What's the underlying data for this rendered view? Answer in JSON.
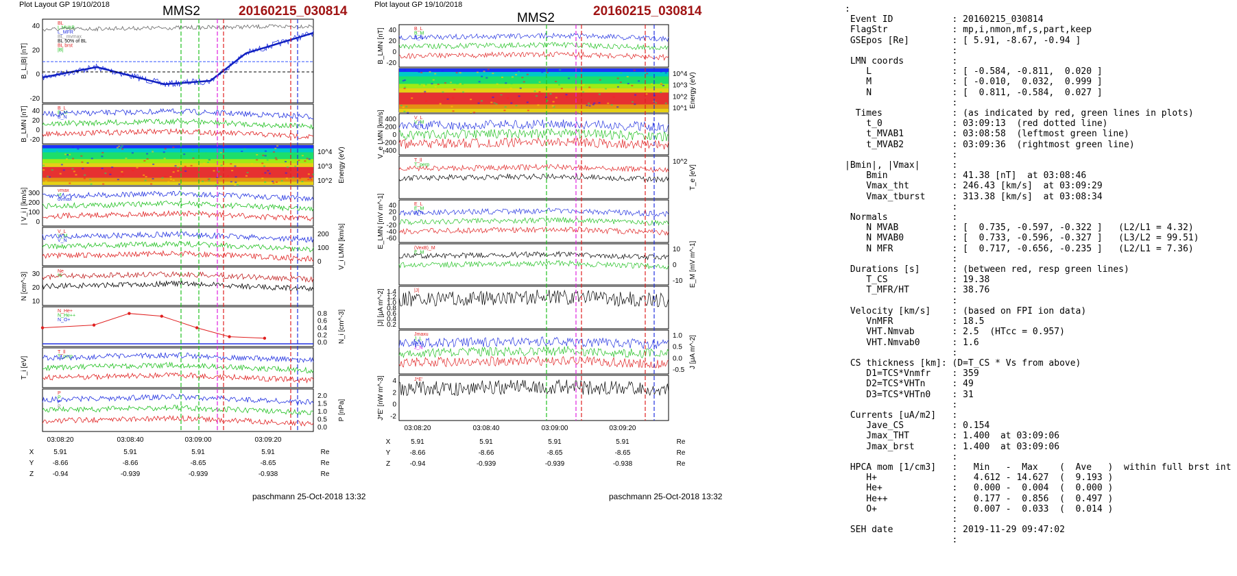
{
  "left": {
    "plot_layout": "Plot Layout GP 19/10/2018",
    "spacecraft": "MMS2",
    "event": "20160215_030814",
    "footer": "paschmann 25-Oct-2018 13:32",
    "time_ticks": [
      "03:08:20",
      "03:08:40",
      "03:09:00",
      "03:09:20"
    ],
    "pos_labels": [
      "X",
      "Y",
      "Z"
    ],
    "pos_values": [
      [
        "5.91",
        "5.91",
        "5.91",
        "5.91"
      ],
      [
        "-8.66",
        "-8.66",
        "-8.65",
        "-8.65"
      ],
      [
        "-0.94",
        "-0.939",
        "-0.939",
        "-0.938"
      ]
    ],
    "pos_unit": "Re",
    "panels": [
      {
        "ylabel": "B_L,|B| [nT]",
        "ticks": [
          "40",
          "20",
          "0",
          "-20"
        ],
        "legend": [
          "BL",
          "L MVAB",
          "L_MFR",
          "BL_mvmax",
          "BL 50% of BL",
          "BL brst",
          "|B|"
        ]
      },
      {
        "ylabel": "B_LMN [nT]",
        "ticks": [
          "40",
          "20",
          "0",
          "-20"
        ],
        "legend": [
          "B_L",
          "B_M",
          "B_N"
        ]
      },
      {
        "ylabel": "Energy (eV)",
        "ticks": [
          "10^4",
          "10^3",
          "10^2"
        ],
        "legend": []
      },
      {
        "ylabel": "| V_i | [km/s]",
        "ticks": [
          "300",
          "200",
          "100",
          "0"
        ],
        "legend": [
          "vmax",
          "vt",
          "dvmax"
        ]
      },
      {
        "ylabel": "V_i LMN [km/s]",
        "ticks": [
          "200",
          "100",
          "0"
        ],
        "legend": [
          "V_L",
          "V_M",
          "V_N"
        ]
      },
      {
        "ylabel": "N [cm^-3]",
        "ticks": [
          "30",
          "20",
          "10"
        ],
        "legend": [
          "Ne",
          "Ni"
        ]
      },
      {
        "ylabel": "N_i [cm^-3]",
        "ticks": [
          "0.8",
          "0.6",
          "0.4",
          "0.2",
          "0.0"
        ],
        "legend": [
          "N_He+",
          "N_He++",
          "N_O+"
        ]
      },
      {
        "ylabel": "T_i [eV]",
        "ticks": [],
        "legend": [
          "T_ll",
          "T_perp"
        ]
      },
      {
        "ylabel": "P [nPa]",
        "ticks": [
          "2.0",
          "1.5",
          "1.0",
          "0.5",
          "0.0"
        ],
        "legend": [
          "P",
          "P",
          "P",
          "P"
        ]
      }
    ]
  },
  "middle": {
    "plot_layout": "Plot layout GP 19/10/2018",
    "spacecraft": "MMS2",
    "event": "20160215_030814",
    "footer": "paschmann 25-Oct-2018 13:32",
    "time_ticks": [
      "03:08:20",
      "03:08:40",
      "03:09:00",
      "03:09:20"
    ],
    "pos_labels": [
      "X",
      "Y",
      "Z"
    ],
    "pos_values": [
      [
        "5.91",
        "5.91",
        "5.91",
        "5.91"
      ],
      [
        "-8.66",
        "-8.66",
        "-8.65",
        "-8.65"
      ],
      [
        "-0.94",
        "-0.939",
        "-0.939",
        "-0.938"
      ]
    ],
    "pos_unit": "Re",
    "panels": [
      {
        "ylabel": "B_LMN [nT]",
        "ticks": [
          "40",
          "20",
          "0",
          "-20"
        ],
        "legend": [
          "B_L",
          "B_M",
          "B_N"
        ]
      },
      {
        "ylabel": "Energy (eV)",
        "ticks": [
          "10^4",
          "10^3",
          "10^2",
          "10^1"
        ],
        "legend": []
      },
      {
        "ylabel": "V_e LMN [km/s]",
        "ticks": [
          "400",
          "200",
          "0",
          "-200",
          "-400"
        ],
        "legend": [
          "V_L",
          "V_M",
          "V_N"
        ]
      },
      {
        "ylabel": "T_e [eV]",
        "ticks": [
          "10^2"
        ],
        "legend": [
          "T_ll",
          "T_perp"
        ]
      },
      {
        "ylabel": "E_LMN [mV m^-1]",
        "ticks": [
          "40",
          "20",
          "0",
          "-20",
          "-40",
          "-60"
        ],
        "legend": [
          "E_L",
          "E_M",
          "E_N"
        ]
      },
      {
        "ylabel": "E_M [mV m^-1]",
        "ticks": [
          "10",
          "0",
          "-10"
        ],
        "legend": [
          "(VexB)_M",
          "E_M"
        ]
      },
      {
        "ylabel": "|J| [μA m^-2]",
        "ticks": [
          "1.4",
          "1.2",
          "1.0",
          "0.8",
          "0.6",
          "0.4",
          "0.2"
        ],
        "legend": [
          "|J|"
        ]
      },
      {
        "ylabel": "J [μA m^-2]",
        "ticks": [
          "1.0",
          "0.5",
          "0.0",
          "-0.5"
        ],
        "legend": [
          "Jmaxu",
          "J_L",
          "J_M",
          "J_N"
        ]
      },
      {
        "ylabel": "J*E' [nW m^-3]",
        "ticks": [
          "4",
          "2",
          "0",
          "-2"
        ],
        "legend": [
          "J*E'"
        ]
      }
    ]
  },
  "summary_lines": [
    ":",
    " Event ID           : 20160215_030814",
    " FlagStr            : mp,i,nmon,mf,s,part,keep",
    " GSEpos [Re]        : [ 5.91, -8.67, -0.94 ]",
    "                    :",
    " LMN coords         :",
    "    L               : [ -0.584, -0.811,  0.020 ]",
    "    M               : [ -0.010,  0.032,  0.999 ]",
    "    N               : [  0.811, -0.584,  0.027 ]",
    "                    :",
    "  Times             : (as indicated by red, green lines in plots)",
    "    t_0             : 03:09:13  (red dotted line)",
    "    t_MVAB1         : 03:08:58  (leftmost green line)",
    "    t_MVAB2         : 03:09:36  (rightmost green line)",
    "                    :",
    "|Bmin|, |Vmax|      :",
    "    Bmin            : 41.38 [nT]  at 03:08:46",
    "    Vmax_tht        : 246.43 [km/s]  at 03:09:29",
    "    Vmax_tburst     : 313.38 [km/s]  at 03:08:34",
    "                    :",
    " Normals            :",
    "    N MVAB          : [  0.735, -0.597, -0.322 ]   (L2/L1 = 4.32)",
    "    N MVAB0         : [  0.733, -0.596, -0.327 ]   (L3/L2 = 99.51)",
    "    N MFR           : [  0.717, -0.656, -0.235 ]   (L2/L1 = 7.36)",
    "                    :",
    " Durations [s]      : (between red, resp green lines)",
    "    T_CS            : 19.38",
    "    T_MFR/HT        : 38.76",
    "                    :",
    " Velocity [km/s]    : (based on FPI ion data)",
    "    VnMFR           : 18.5",
    "    VHT.Nmvab       : 2.5  (HTcc = 0.957)",
    "    VHT.Nmvab0      : 1.6",
    "                    :",
    " CS thickness [km]: (D=T_CS * Vs from above)",
    "    D1=TCS*Vnmfr    : 359",
    "    D2=TCS*VHTn     : 49",
    "    D3=TCS*VHTn0    : 31",
    "                    :",
    " Currents [uA/m2]   :",
    "    Jave_CS         : 0.154",
    "    Jmax_THT        : 1.400  at 03:09:06",
    "    Jmax_brst       : 1.400  at 03:09:06",
    "                    :",
    " HPCA mom [1/cm3]   :   Min   -  Max    (  Ave   )  within full brst int",
    "    H+              :   4.612 - 14.627  (  9.193 )",
    "    He+             :   0.000 -  0.004  (  0.000 )",
    "    He++            :   0.177 -  0.856  (  0.497 )",
    "    O+              :   0.007 -  0.033  (  0.014 )",
    "                    :",
    " SEH date           : 2019-11-29 09:47:02",
    "                    :"
  ],
  "colors": {
    "event": "#a01414",
    "red": "#e02020",
    "green": "#20c020",
    "blue": "#2030e0",
    "magenta": "#e020e0",
    "black": "#000000",
    "gray": "#888888"
  },
  "chart_data": [
    {
      "type": "line",
      "title": "MMS2 20160215_030814",
      "xlabel": "time",
      "x_ticks": [
        "03:08:20",
        "03:08:40",
        "03:09:00",
        "03:09:20"
      ],
      "panels_left": [
        "B_L,|B| [nT]",
        "B_LMN [nT]",
        "ion energy spectrogram",
        "|V_i| [km/s]",
        "V_i LMN [km/s]",
        "N [cm^-3]",
        "N_i [cm^-3]",
        "T_i [eV]",
        "P [nPa]"
      ],
      "series": [
        {
          "name": "N He++",
          "x": [
            "03:08:20",
            "03:08:31",
            "03:08:40",
            "03:08:50",
            "03:09:00",
            "03:09:10",
            "03:09:20"
          ],
          "values": [
            0.45,
            0.52,
            0.82,
            0.75,
            0.45,
            0.22,
            0.18
          ]
        }
      ]
    },
    {
      "type": "line",
      "title": "MMS2 20160215_030814",
      "xlabel": "time",
      "x_ticks": [
        "03:08:20",
        "03:08:40",
        "03:09:00",
        "03:09:20"
      ],
      "panels_middle": [
        "B_LMN [nT]",
        "electron energy spectrogram",
        "V_e LMN [km/s]",
        "T_e [eV]",
        "E_LMN [mV m^-1]",
        "E_M [mV m^-1]",
        "|J| [μA m^-2]",
        "J [μA m^-2]",
        "J*E' [nW m^-3]"
      ]
    }
  ]
}
